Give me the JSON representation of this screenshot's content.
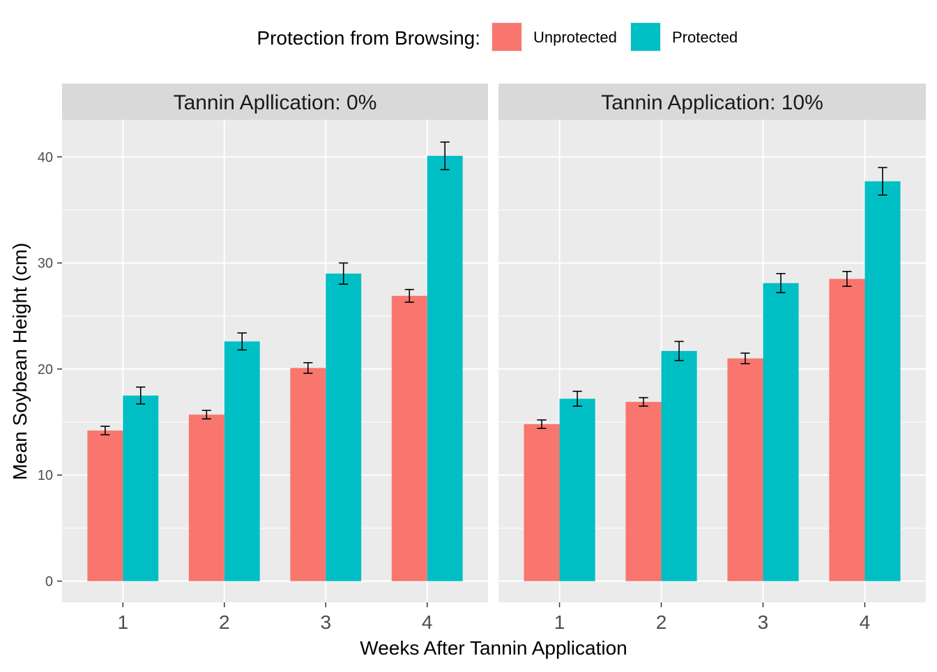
{
  "chart_data": {
    "type": "bar",
    "legend": {
      "title": "Protection from Browsing:",
      "position": "top",
      "entries": [
        {
          "name": "Unprotected",
          "color": "#F8766D"
        },
        {
          "name": "Protected",
          "color": "#00BFC4"
        }
      ]
    },
    "xlabel": "Weeks After Tannin Application",
    "ylabel": "Mean Soybean Height (cm)",
    "ylim": [
      -2,
      43.5
    ],
    "yticks": [
      0,
      10,
      20,
      30,
      40
    ],
    "grid": true,
    "categories": [
      "1",
      "2",
      "3",
      "4"
    ],
    "panels": [
      {
        "strip": "Tannin Apllication: 0%",
        "series": [
          {
            "name": "Unprotected",
            "values": [
              14.2,
              15.7,
              20.1,
              26.9
            ],
            "errors": [
              0.4,
              0.4,
              0.5,
              0.6
            ]
          },
          {
            "name": "Protected",
            "values": [
              17.5,
              22.6,
              29.0,
              40.1
            ],
            "errors": [
              0.8,
              0.8,
              1.0,
              1.3
            ]
          }
        ]
      },
      {
        "strip": "Tannin Application: 10%",
        "series": [
          {
            "name": "Unprotected",
            "values": [
              14.8,
              16.9,
              21.0,
              28.5
            ],
            "errors": [
              0.4,
              0.4,
              0.5,
              0.7
            ]
          },
          {
            "name": "Protected",
            "values": [
              17.2,
              21.7,
              28.1,
              37.7
            ],
            "errors": [
              0.7,
              0.9,
              0.9,
              1.3
            ]
          }
        ]
      }
    ]
  }
}
